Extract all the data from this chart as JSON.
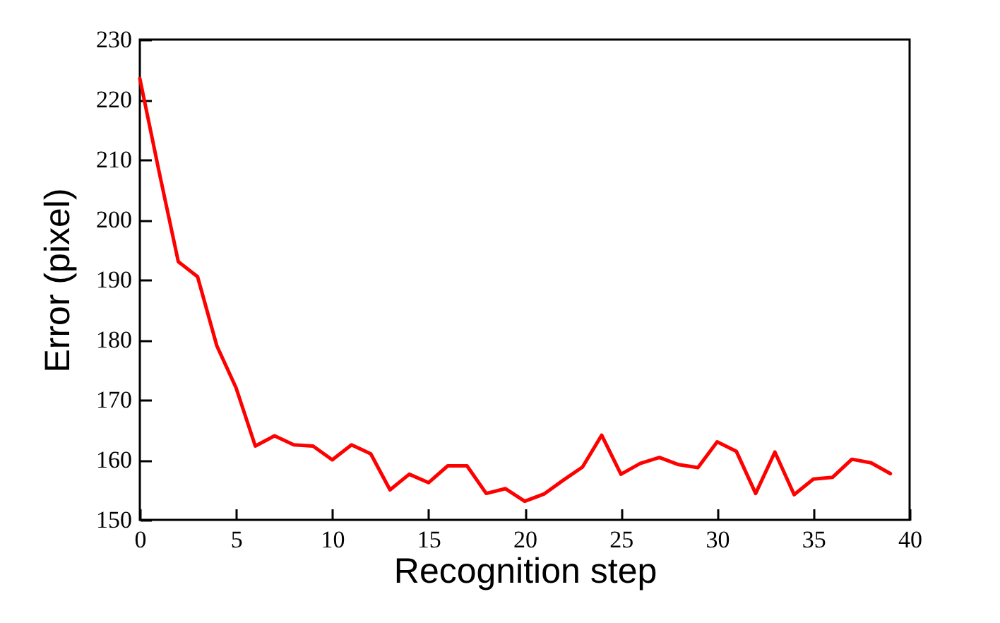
{
  "chart_data": {
    "type": "line",
    "xlabel": "Recognition step",
    "ylabel": "Error (pixel)",
    "x": [
      0,
      1,
      2,
      3,
      4,
      5,
      6,
      7,
      8,
      9,
      10,
      11,
      12,
      13,
      14,
      15,
      16,
      17,
      18,
      19,
      20,
      21,
      22,
      23,
      24,
      25,
      26,
      27,
      28,
      29,
      30,
      31,
      32,
      33,
      34,
      35,
      36,
      37,
      38,
      39
    ],
    "series": [
      {
        "color": "#ff0000",
        "values": [
          223.5,
          208,
          193,
          190.5,
          179,
          172,
          162.3,
          164,
          162.5,
          162.3,
          160,
          162.5,
          161,
          155,
          157.6,
          156.2,
          159,
          159,
          154.4,
          155.2,
          153.1,
          154.3,
          156.6,
          158.8,
          164.1,
          157.6,
          159.4,
          160.4,
          159.2,
          158.7,
          163,
          161.4,
          154.4,
          161.3,
          154.2,
          156.8,
          157.1,
          160.1,
          159.5,
          157.7
        ]
      }
    ],
    "xlim": [
      0,
      40
    ],
    "xticks": [
      0,
      5,
      10,
      15,
      20,
      25,
      30,
      35,
      40
    ],
    "ylim": [
      150,
      230
    ],
    "yticks": [
      150,
      160,
      170,
      180,
      190,
      200,
      210,
      220,
      230
    ],
    "grid": false,
    "legend": false,
    "marker": "none",
    "line_style": "solid"
  }
}
